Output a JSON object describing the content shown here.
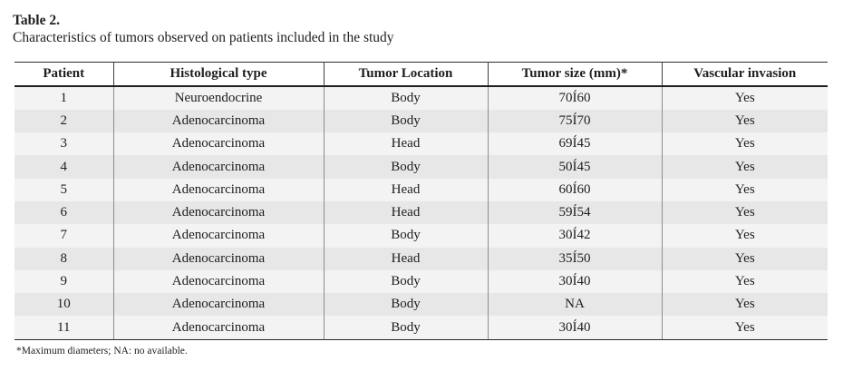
{
  "title": "Table 2.",
  "subtitle": "Characteristics of tumors observed on patients included in the study",
  "table": {
    "columns": {
      "patient": "Patient",
      "histological_type": "Histological type",
      "tumor_location": "Tumor Location",
      "tumor_size": "Tumor size (mm)*",
      "vascular_invasion": "Vascular invasion"
    },
    "rows": [
      [
        "1",
        "Neuroendocrine",
        "Body",
        "70Í60",
        "Yes"
      ],
      [
        "2",
        "Adenocarcinoma",
        "Body",
        "75Í70",
        "Yes"
      ],
      [
        "3",
        "Adenocarcinoma",
        "Head",
        "69Í45",
        "Yes"
      ],
      [
        "4",
        "Adenocarcinoma",
        "Body",
        "50Í45",
        "Yes"
      ],
      [
        "5",
        "Adenocarcinoma",
        "Head",
        "60Í60",
        "Yes"
      ],
      [
        "6",
        "Adenocarcinoma",
        "Head",
        "59Í54",
        "Yes"
      ],
      [
        "7",
        "Adenocarcinoma",
        "Body",
        "30Í42",
        "Yes"
      ],
      [
        "8",
        "Adenocarcinoma",
        "Head",
        "35Í50",
        "Yes"
      ],
      [
        "9",
        "Adenocarcinoma",
        "Body",
        "30Í40",
        "Yes"
      ],
      [
        "10",
        "Adenocarcinoma",
        "Body",
        "NA",
        "Yes"
      ],
      [
        "11",
        "Adenocarcinoma",
        "Body",
        "30Í40",
        "Yes"
      ]
    ]
  },
  "footnote": "*Maximum diameters; NA: no available.",
  "colors": {
    "row_stripe_light": "#f3f3f3",
    "row_stripe_dark": "#e7e7e7",
    "rule_dark": "#1f1f1f",
    "separator_header": "#3d3d3d",
    "separator_body": "#8c8c8c",
    "text": "#1e1e1e",
    "background": "#ffffff"
  }
}
